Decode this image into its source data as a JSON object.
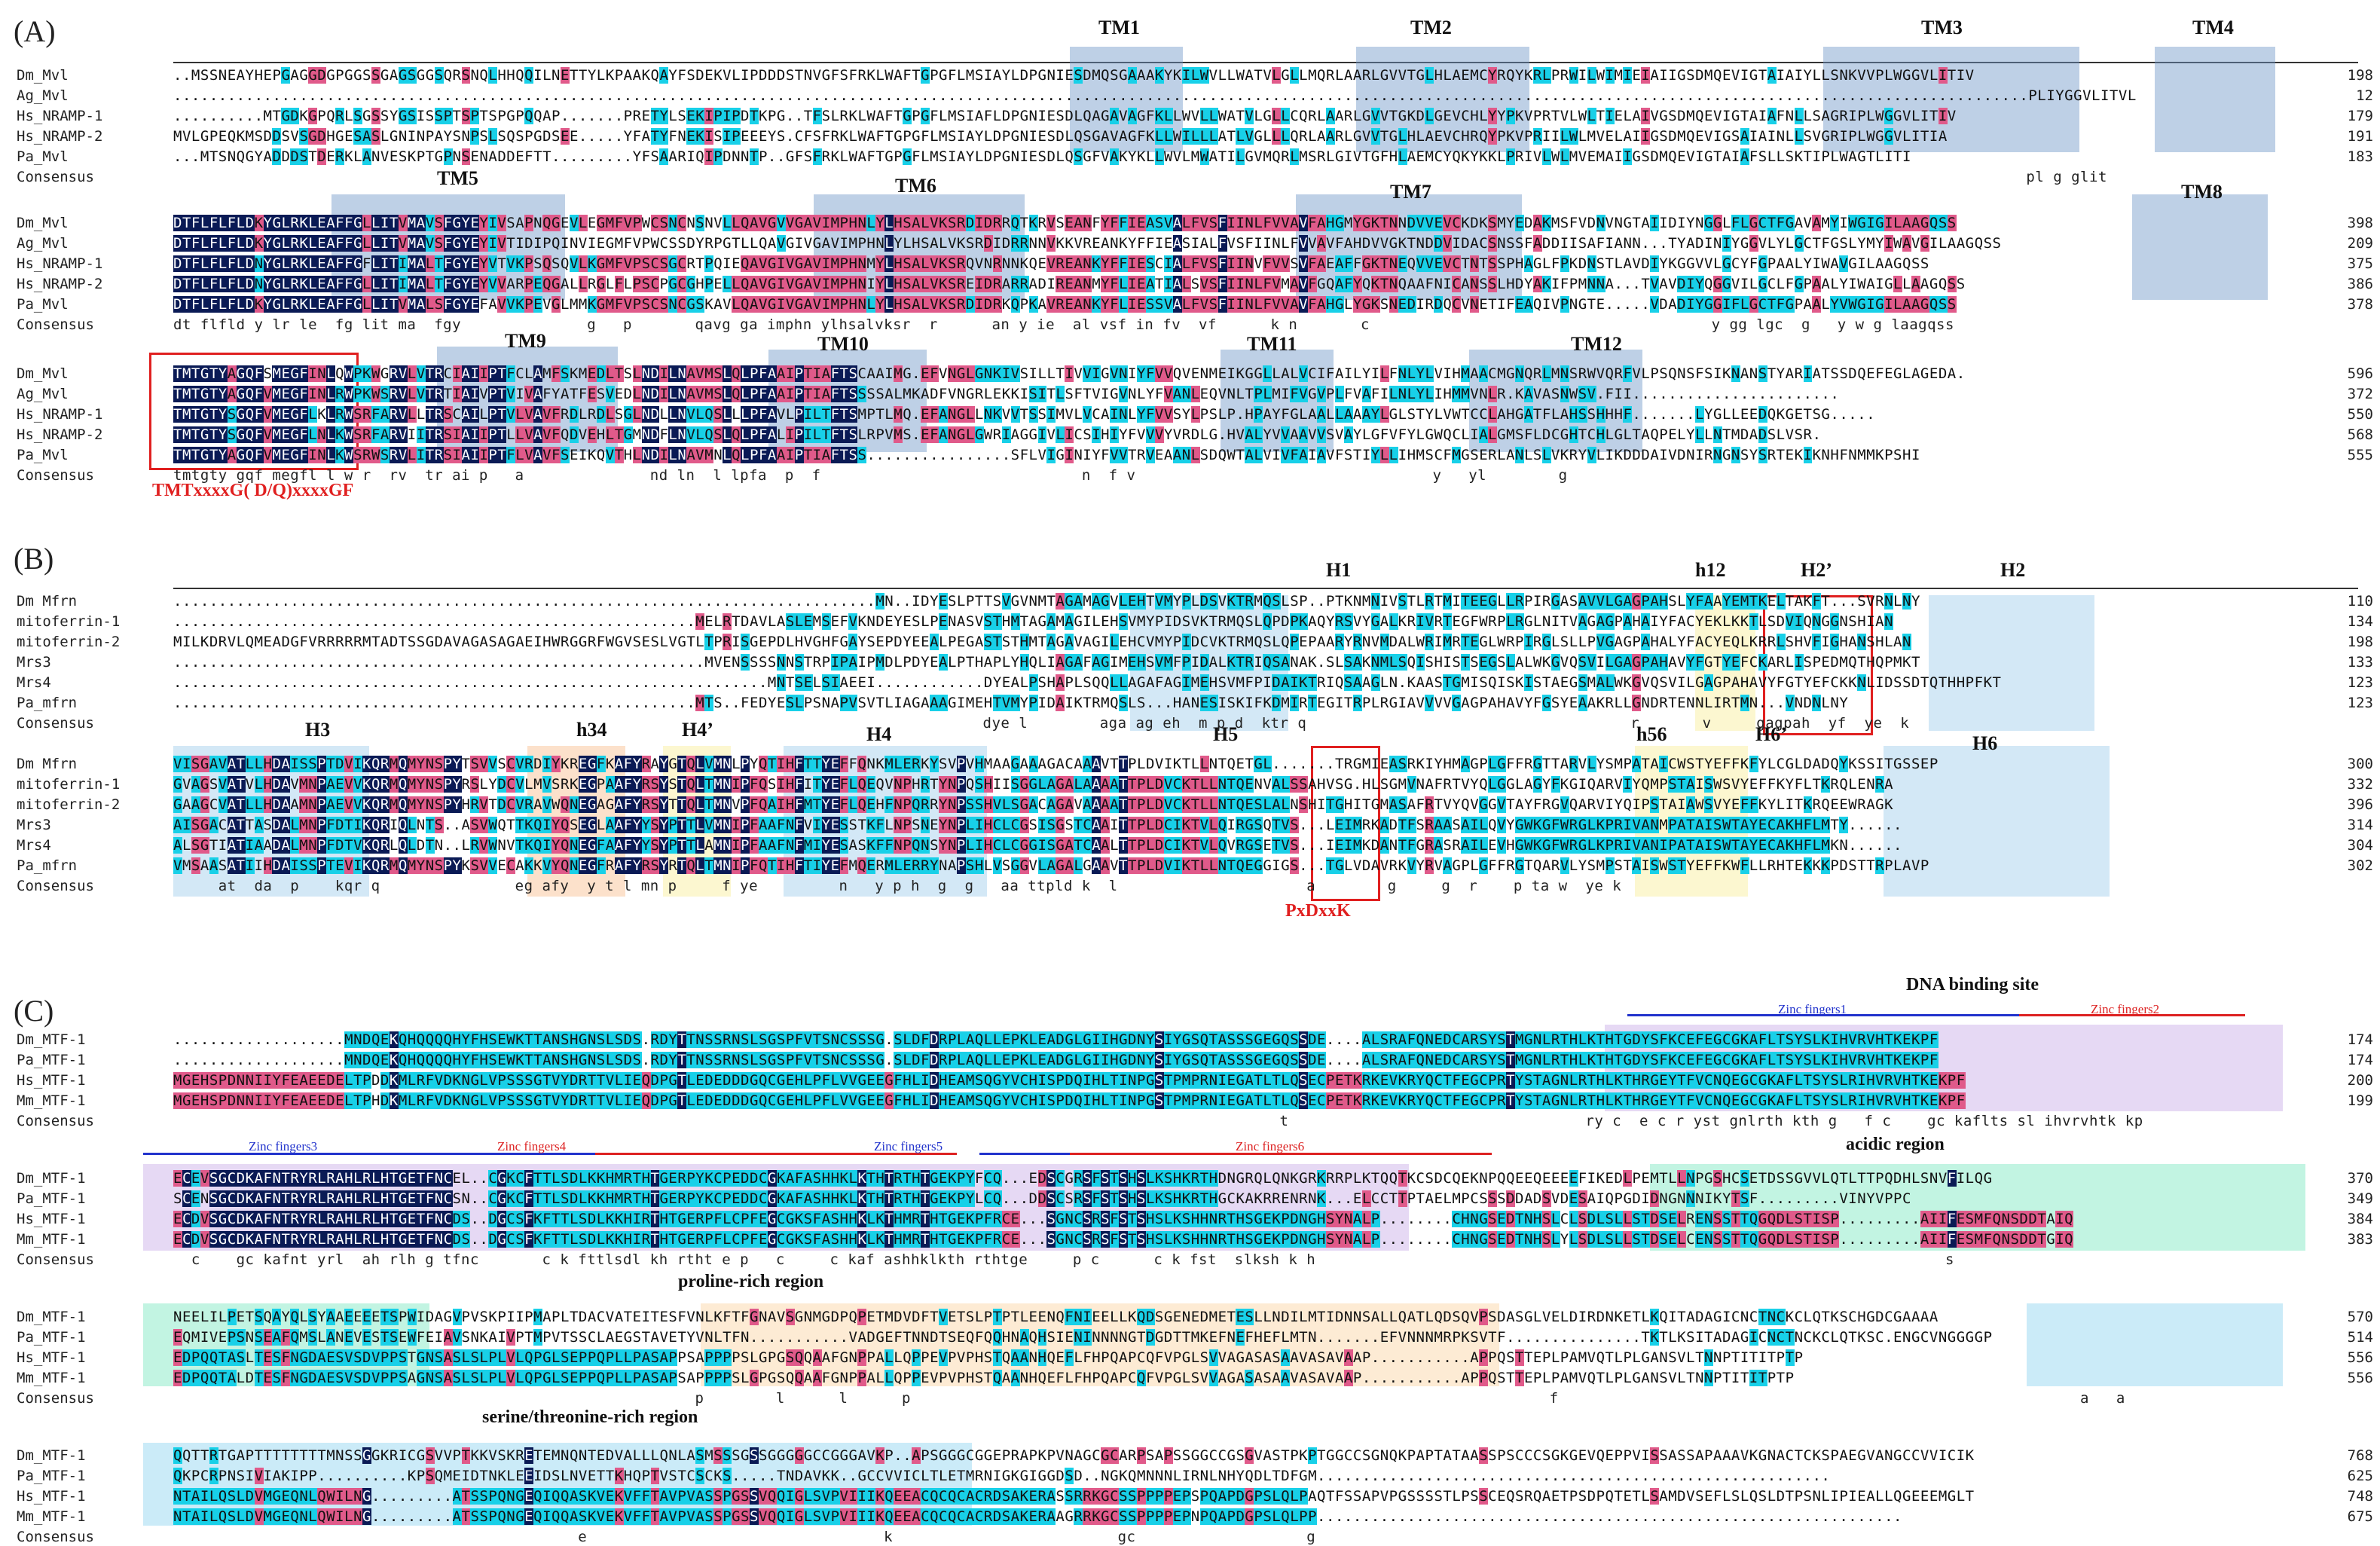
{
  "panels": {
    "A": {
      "label": "(A)",
      "rows": [
        {
          "name": "Dm_Mvl",
          "seq": "..MSSNEAYHEPGAGGDGPGGSSGAGSGGSQRSNQLHHQQILNETTYLKPAAKQAYFSDEKVLIPDDDSTNVGFSFRKLWAFTGPGFLMSIAYLDPGNIESDMQSGAAAKYKILWVLLWATVLGLLMQRLAARLGVVTGLHLAEMCYRQYKRLPRWILWIMIEIAIIGSDMQEVIGTAIAIYLLSNKVVPLWGGVLITIV",
          "num": "198"
        },
        {
          "name": "Ag_Mvl",
          "seq": "..............................................................................................................................................................................................................PLIYGGVLITVL",
          "num": "12"
        },
        {
          "name": "Hs_NRAMP-1",
          "seq": "..........MTGDKGPQRLSGSSYGSISSPTSPTSPGPQQAP.......PRETYLSEKIPIPDTKPG..TFSLRKLWAFTGPGFLMSIAFLDPGNIESDLQAGAVAGFKLLWVLLWATVLGLLCQRLAARLGVVTGKDLGEVCHLYYPKVPRTVLWLTIELAIVGSDMQEVIGTAIAFNLLSAGRIPLWGGVLITIV",
          "num": "179"
        },
        {
          "name": "Hs_NRAMP-2",
          "seq": "MVLGPEQKMSDDSVSGDHGESASLGNINPAYSNPSLSQSPGDSEE.....YFATYFNEKISIPEEEYS.CFSFRKLWAFTGPGFLMSIAYLDPGNIESDLQSGAVAGFKLLWILLLATLVGLLLQRLAARLGVVTGLHLAEVCHRQYPKVPRIILWLMVELAIIGSDMQEVIGSAIAINLLSVGRIPLWGGVLITIA",
          "num": "191"
        },
        {
          "name": "Pa_Mvl",
          "seq": "...MTSNQGYADDDSTDERKLANVESKPTGPNSENADDEFTT.........YFSAARIQIPDNNTP..GFSFRKLWAFTGPGFLMSIAYLDPGNIESDLQSGFVAKYKLLWVLMWATILGVMQRLMSRLGIVTGFHLAEMCYQKYKKLPRIVLWLMVEMAIIGSDMQEVIGTAIAFSLLSKTIPLWAGTLITI",
          "num": "183"
        },
        {
          "name": "Consensus",
          "seq": "                                                                                                                                                                                                              pl g glit",
          "num": ""
        },
        {
          "name": "Dm_Mvl",
          "seq": "DTFLFLFLDKYGLRKLEAFFGLLITVMAVSFGYEYIVSAPNQGEVLEGMFVPWCSNCNSNVLLQAVGVVGAVIMPHNLYLHSALVKSRDIDRRQTKRVSEANFYFFIEASVALFVSFIINLFVVAVFAHGMYGKTNNDVVEVCKDKSMYEDAKMSFVDNVNGTAIIDIYNGGLFLGCTFGAVAMYIWGIGILAAGQSS",
          "num": "398"
        },
        {
          "name": "Ag_Mvl",
          "seq": "DTFLFLFLDKYGLRKLEAFFGLLITVMAVSFGYEYIVTIDIPQINVIEGMFVPWCSSDYRPGTLLQAVGIVGAVIMPHNLYLHSALVKSRDIDRRNNVKKVREANKYFFIEASIALFVSFIINLFVVAVFAHDVVGKTNDDVIDACSNSSFADDIISAFIANN...TYADINIYGGVLYLGCTFGSLYMYIWAVGILAAGQSS",
          "num": "209"
        },
        {
          "name": "Hs_NRAMP-1",
          "seq": "DTFLFLFLDNYGLRKLEAFFGFLITIMALTFGYEYVTVKPSQSQVLKGMFVPSCSGCRTPQIEQAVGIVGAVIMPHNMYLHSALVKSRQVNRNNKQEVREANKYFFIESCIALFVSFIINVFVVSVFAEAFFGKTNEQVVEVCTNTSSPHAGLFPKDNSTLAVDIYKGGVVLGCYFGPAALYIWAVGILAAGQSS",
          "num": "375"
        },
        {
          "name": "Hs_NRAMP-2",
          "seq": "DTFLFLFLDNYGLRKLEAFFGLLITIMALTFGYEYVVARPEQGALLRGLFLPSCPGCGHPELLQAVGIVGAVIMPHNIYLHSALVKSREIDRARRADIREANMYFLIEATIALSVSFIINLFVMAVFGQAFYQKTNQAAFNICANSSLHDYAKIFPMNNA...TVAVDIYQGGVILGCLFGPAALYIWAIGLLAAGQSS",
          "num": "386"
        },
        {
          "name": "Pa_Mvl",
          "seq": "DTFLFLFLDKYGLRKLEAFFGLLITVMALSFGYEFAVVKPEVGLMMKGMFVPSCSNCGSKAVLQAVGIVGAVIMPHNLYLHSALVKSRDIDRKQPKAVREANKYFLIESSVALFVSFIINLFVVAVFAHGLYGKSNEDIRDQCVNETIFEAQIVPNGTE.....VDADIYGGIFLGCTFGPAALYVWGIGILAAGQSS",
          "num": "378"
        },
        {
          "name": "Consensus",
          "seq": "dt flfld y lr le  fg lit ma  fgy              g   p       qavg ga imphn ylhsalvksr  r      an y ie  al vsf in fv  vf      k n       c                                      y gg lgc  g   y w g laagqss",
          "num": ""
        },
        {
          "name": "Dm_Mvl",
          "seq": "TMTGTYAGQFSMEGFINLQWPKWGRVLVTRCIAIIPTFCLAMFSKMEDLTSLNDILNAVMSLQLPFAAIPTIAFTSCAAIMG.EFVNGLGNKIVSILLTIVVIGVNIYFVVQVENMEIKGGLLALVCIFAILYILFNLYLVIHMAACMGNQRLMNSRWVQRFVLPSQNSFSIKNANSTYARIATSSDQEFEGLAGEDA.",
          "num": "596"
        },
        {
          "name": "Ag_Mvl",
          "seq": "TMTGTYAGQFVMEGFINLRWPKWSRVLVTRTIAIVPTVIVAFYATFESVEDLNDILNAVMSLQLPFAAIPTIAFTSSSSALMKADFVNGRLEKKISITLSFTVIGVNLYFVANLEQVNLTPLMIFVGVPLFVAFILNLYLIHMMVNLR.KAVASNWSV.FII.......................",
          "num": "372"
        },
        {
          "name": "Hs_NRAMP-1",
          "seq": "TMTGTYSGQFVMEGFLKLRWSRFARVLLTRSCAILPTVLVAVFRDLRDLSGLNDLLNVLQSLLLPFAVLPILTFTSMPTLMQ.EFANGLLNKVVTSSIMVLVCAINLYFVVSYLPSLP.HPAYFGLAALLAAAYLGLSTYLVWTCCLAHGATFLAHSSHHHF.......LYGLLEEDQKGETSG.....",
          "num": "550"
        },
        {
          "name": "Hs_NRAMP-2",
          "seq": "TMTGTYSGQFVMEGFLNLKWSRFARVIITRSIAIIPTLLVAVFQDVEHLTGMNDFLNVLQSLQLPFALIPILTFTSLRPVMS.EFANGLGWRIAGGIVLICSIHIYFVVVYVRDLG.HVALYVVAAVVSVAYLGFVFYLGWQCLIALGMSFLDCGHTCHLGLTAQPELYLLNTMDADSLVSR.",
          "num": "568"
        },
        {
          "name": "Pa_Mvl",
          "seq": "TMTGTYAGQFVMEGFINLKWSRWSRVLITRSIAIIPTFLVAVFSEIKQVTHLNDILNAVMNLQLPFAAIPTIAFTSS................SFLVIGINIYFVVTRVEAANLSDQWTALVIVFAIAVFSTIYLLIHMSCFMGSERLANLSLVKRYVLIKDDDAIVDNIRNGNSYSRTEKIKNHFNMMKPSHI",
          "num": "555"
        },
        {
          "name": "Consensus",
          "seq": "tmtgty gqf megfl l w r  rv  tr ai p   a              nd ln  l lpfa  p  f                             n  f v                                 y   yl        g",
          "num": ""
        }
      ],
      "features": [
        "TM1",
        "TM2",
        "TM3",
        "TM4",
        "TM5",
        "TM6",
        "TM7",
        "TM8",
        "TM9",
        "TM10",
        "TM11",
        "TM12"
      ],
      "motif": "TMTxxxxG( D/Q)xxxxGF"
    },
    "B": {
      "label": "(B)",
      "rows": [
        {
          "name": "Dm Mfrn",
          "seq": "..............................................................................MN..IDYESLPTTSVGVNMTAGAMAGVLEHTVMYPLDSVKTRMQSLSP..PTKNMNIVSTLRTMITEEGLLRPIRGASAVVLGAGPAHSLYFAAYEMTKELTAKFT...SVRNLNY",
          "num": "110"
        },
        {
          "name": "mitoferrin-1",
          "seq": "..........................................................MELRTDAVLASLEMSEFVKNDEYESLPENASVSTHMTAGAMAGILEHSVMYPIDSVKTRMQSLQPDPKAQYRSVYGALKRIVRTEGFWRPLRGLNITVAGAGPAHAIYFACYEKLKKTLSDVIQNGGNSHIAN",
          "num": "134"
        },
        {
          "name": "mitoferrin-2",
          "seq": "MILKDRVLQMEADGFVRRRRRMTADTSSGDAVAGASAGAEIHWRGGRFWGVSESLVGTLTPRISGEPDLHVGHFGAYSEPDYEEALPEGASTSTHMTAGAVAGILEHCVMYPIDCVKTRMQSLQPEPAARYRNVMDALWRIMRTEGLWRPIRGLSLLPVGAGPAHALYFACYEQLKRRLSHVFIGHANSHLAN",
          "num": "198"
        },
        {
          "name": "Mrs3",
          "seq": "...........................................................MVENSSSSNNSTRPIPAIPMDLPDYEALPTHAPLYHQLIAGAFAGIMEHSVMFPIDALKTRIQSANAK.SLSAKNMLSQISHISTSEGSLALWKGVQSVILGAGPAHAVYFGTYEFCKARLISPEDMQTHQPMKT",
          "num": "133"
        },
        {
          "name": "Mrs4",
          "seq": "..................................................................MNTSELSIAEEI............DYEALPSHAPLSQQLLAGAFAGIMEHSVMFPIDAIKTRIQSAAGLN.KAASTGMISQISKISTAEGSMALWKGVQSVILGAGPAHAVYFGTYEFCKKNLIDSSDTQTHHPFKT",
          "num": "123"
        },
        {
          "name": "Pa_mfrn",
          "seq": "..........................................................MTS..FEDYESLPSNAPVSVTLIAGAAAGIMEHTVMYPIDAIKTRMQSLS...HANESISKIFKDMIRTEGITRPLRGIAVVVVGAGPAHAVYFGSYEAAKRLLGNDRTENNLIRTMN...VNDNLNY",
          "num": "123"
        },
        {
          "name": "Consensus",
          "seq": "                                                                                          dye l        aga ag eh  m p d  ktr q                                    r       v     gagpah  yf  ye  k",
          "num": ""
        },
        {
          "name": "Dm Mfrn",
          "seq": "VISGAVATLLHDAISSPTDVIKQRMQMYNSPYTSVVSCVRDIYKREGFKAFYRAYGTQLVMNLPYQTIHFTTYEFFQNKMLERKYSVPVHMAAGAAAGACAAAVTTPLDVIKTLLNTQETGL.......TRGMIEASRKIYHMAGPLGFFRGTTARVLYSMPATAICWSTYEFFKFYLCGLDADQYKSSITGSSEP",
          "num": "300"
        },
        {
          "name": "mitoferrin-1",
          "seq": "GVAGSVATVLHDAVMNPAEVVKQRMQMYNSPYRSLYDCVLMVSRKEGPAAFYRSYSTQLTMNIPFQSIHFITYEFLQEQVNPHRTYNPQSHIISGGLAGALAAAATTPLDVCKTLLNTQENVALSSAHVSG.HLSGMVNAFRTVYQLGGLAGYFKGIQARVIYQMPSTAISWSVYEFFKYFLTKRQLENRA",
          "num": "332"
        },
        {
          "name": "mitoferrin-2",
          "seq": "GAAGCVATLLHDAAMNPAEVVKQRMQMYNSPYHRVTDCVRAVWQNEGAGAFYRSYTTQLTMNVPFQAIHFMTYEFLQEHFNPQRRYNPSSHVLSGACAGAVAAAATTPLDVCKTLLNTQESLALNSHITGHITGMASAFRTVYQVGGVTAYFRGVQARVIYQIPSTAIAWSVYEFFKYLITKRQEEWRAGK",
          "num": "396"
        },
        {
          "name": "Mrs3",
          "seq": "AISGACATTASDALMNPFDTIKQRIQLNTS..ASVWQTTKQIYQSEGLAAFYYSYPTTLVMNIPFAAFNFVIYESSTKFLNPSNEYNPLIHCLCGSISGSTCAAITTPLDCIKTVLQIRGSQTVS...LEIMRKADTFSRAASAILQVYGWKGFWRGLKPRIVANMPATAISWTAYECAKHFLMTY......",
          "num": "314"
        },
        {
          "name": "Mrs4",
          "seq": "ALSGTIATIAADALMNPFDTVKQRLQLDTN..LRVWNVTKQIYQNEGFAAFYYSYPTTLAMNIPFAAFNFMIYESASKFFNPQNSYNPLIHCLCGGISGATCAALTTPLDCIKTVLQVRGSETVS...IEIMKDANTFGRASRAILEVHGWKGFWRGLKPRIVANIPATAISWTAYECAKHFLMKN......",
          "num": "304"
        },
        {
          "name": "Pa_mfrn",
          "seq": "VMSAASATIIHDAISSPTEVIKQRMQMYNSPYKSVVECAKKVYQNEGFRAFYRSYRTQLTMNIPFQTIHFTIYEFMQERMLERRYNAPSHLVSGGVLAGALGAAVTTPLDVIKTLLNTQEGGIGS...TGLVDAVRKVYRVAGPLGFFRGTQARVLYSMPSTAISWSTYEFFKWFLLRHTEKKKPDSTTRPLAVP",
          "num": "302"
        },
        {
          "name": "Consensus",
          "seq": "     at  da  p    kqr q               eg afy  y t l mn p     f ye         n   y p h  g  g   aa ttpld k  l                     a        g     g  r    p ta w  ye k",
          "num": ""
        }
      ],
      "features": [
        "H1",
        "h12",
        "H2’",
        "H2",
        "H3",
        "h34",
        "H4’",
        "H4",
        "H5",
        "h56",
        "H6’",
        "H6"
      ],
      "motif": "PxDxxK"
    },
    "C": {
      "label": "(C)",
      "rows": [
        {
          "name": "Dm_MTF-1",
          "seq": "...................MNDQEKQHQQQQHYFHSEWKTTANSHGNSLSDS.RDYTTNSSRNSLSGSPFVTSNCSSSG.SLDFDRPLAQLLEPKLEADGLGIIHGDNYSIYGSQTASSSGEGQSSDE....ALSRAFQNEDCARSYSTMGNLRTHLKTHTGDYSFKCEFEGCGKAFLTSYSLKIHVRVHTKEKPF",
          "num": "174"
        },
        {
          "name": "Pa_MTF-1",
          "seq": "...................MNDQEKQHQQQQHYFHSEWKTTANSHGNSLSDS.RDYTTNSSRNSLSGSPFVTSNCSSSG.SLDFDRPLAQLLEPKLEADGLGIIHGDNYSIYGSQTASSSGEGQSSDE....ALSRAFQNEDCARSYSTMGNLRTHLKTHTGDYSFKCEFEGCGKAFLTSYSLKIHVRVHTKEKPF",
          "num": "174"
        },
        {
          "name": "Hs_MTF-1",
          "seq": "MGEHSPDNNIIYFEAEEDELTPDDKMLRFVDKNGLVPSSSGTVYDRTTVLIEQDPGTLEDEDDDGQCGEHLPFLVVGEEGFHLIDHEAMSQGYVCHISPDQIHLTINPGSTPMPRNIEGATLTLQSECPETKRKEVKRYQCTFEGCPRTYSTAGNLRTHLKTHRGEYTFVCNQEGCGKAFLTSYSLRIHVRVHTKEKPF",
          "num": "200"
        },
        {
          "name": "Mm_MTF-1",
          "seq": "MGEHSPDNNIIYFEAEEDELTPHDKMLRFVDKNGLVPSSSGTVYDRTTVLIEQDPGTLEDEDDDGQCGEHLPFLVVGEEGFHLIDHEAMSQGYVCHISPDQIHLTINPGSTPMPRNIEGATLTLQSECPETKRKEVKRYQCTFEGCPRTYSTAGNLRTHLKTHRGEYTFVCNQEGCGKAFLTSYSLRIHVRVHTKEKPF",
          "num": "199"
        },
        {
          "name": "Consensus",
          "seq": "                                                                                                                           t                                 ry c  e c r yst gnlrth kth g   f c    gc kaflts sl ihvrvhtk kp",
          "num": ""
        },
        {
          "name": "Dm_MTF-1",
          "seq": "ECEVSGCDKAFNTRYRLRAHLRLHTGETFNCEL..CGKCFTTLSDLKKHMRTHTGERPYKCPEDDCGKAFASHHKLKTHTRTHTGEKPYFCQ...EDSCGRSFSTSHSLKSHKRTHDNGRQLQNKGRKRRPLKTQQTKCSDCQEKNPQQEEQEEEEFIKEDLPEMTLLNPGSHCSETDSSGVVLQTLTTPQDHLSNVFILQG",
          "num": "370"
        },
        {
          "name": "Pa_MTF-1",
          "seq": "SCENSGCDKAFNTRYRLRAHLRLHTGETFNCSN..CGKCFTTLSDLKKHMRTHTGERPYKCPEDDCGKAFASHHKLKTHTRTHTGEKPYLCQ...DDSCSRSFSTSHSLKSHKRTHGCKAKRRENRNK...ELCCTTPTAELMPCSSSDDADSVDESAIQPGDIDNGNNNIKYTSF.........VINYVPPC",
          "num": "349"
        },
        {
          "name": "Hs_MTF-1",
          "seq": "ECDVSGCDKAFNTRYRLRAHLRLHTGETFNCDS..DGCSFKFTTLSDLKKHIRTHTGERPFLCPFEGCGKSFASHHKLKTHMRTHTGEKPFRCE...SGNCSRSFSTSHSLKSHHNRTHSGEKPDNGHSYNALP........CHNGSEDTNHSLCLSDLSLLSTDSELRENSSTTQGQDLSTISP.........AIIFESMFQNSDDTAIQ",
          "num": "384"
        },
        {
          "name": "Mm_MTF-1",
          "seq": "ECDVSGCDKAFNTRYRLRAHLRLHTGETFNCDS..DGCSFKFTTLSDLKKHIRTHTGERPFLCPFEGCGKSFASHHKLKTHMRTHTGEKPFRCE...SGNCSRSFSTSHSLKSHHNRTHSGEKPDNGHSYNALP........CHNGSEDTNHSLYLSDLSLLSTDSELCENSSTTQGQDLSTISP.........AIIFESMFQNSDDTGIQ",
          "num": "383"
        },
        {
          "name": "Consensus",
          "seq": "  c    gc kafnt yrl  ah rlh g tfnc       c k fttlsdl kh rtht e p   c     c kaf ashhklkth rthtge     p c      c k fst  slksh k h                                                                      s",
          "num": ""
        },
        {
          "name": "Dm_MTF-1",
          "seq": "NEELILPETSQAYQLSYAAEEEETSPWIDAGVPVSKPIIPMAPLTDACVATEITESFVNLKFTFGNAVSGNMGDPQPETMDVDFTVETSLPTPTLEENQFNIEELLKQDSGENEDMETESLLNDILMTIDNNSALLQATLQDSQVPSDASGLVELDIRDNKETLKQITADAGICNCTNCKCLQTKSCHGDCGAAAA",
          "num": "570"
        },
        {
          "name": "Pa_MTF-1",
          "seq": "EQMIVEPSNSEAFQMSLANEVESTSEWFEIAVSNKAIVPTMPVTSSCLAEGSTAVETYVNLTFN...........VADGEFTNNDTSEQFQQHNAQHSIENINNNNGTDGDTTMKEFNEFHEFLMTN.......EFVNNNMRPKSVTF...............TKTLKSITADAGICNCTNCKCLQTKSC.ENGCVNGGGGP",
          "num": "514"
        },
        {
          "name": "Hs_MTF-1",
          "seq": "EDPQQTASLTESFNGDAESVSDVPPSTGNSASLSLPLVLQPGLSEPPQPLLPASAPPSAPPPPSLGPGSQQAAFGNPPALLQPPEVPVPHSTQAANHQEFLFHPQAPCQFVPGLSVVAGASASAAVASAVAAP...........APPQSTTEPLPAMVQTLPLGANSVLTNNPTITITPTP",
          "num": "556"
        },
        {
          "name": "Mm_MTF-1",
          "seq": "EDPQQTALDTESFNGDAESVSDVPPSAGNSASLSLPLVLQPGLSEPPQPLLPASAPSAPPPPSLGPGSQQAAFGNPPALLQPPEVPVPHSTQAANHQEFLFHPQAPCQFVPGLSVVAGASASAAVASAVAAP...........APPQSTTEPLPAMVQTLPLGANSVLTNNPTITITPTP",
          "num": "556"
        },
        {
          "name": "Consensus",
          "seq": "                                                          p        l      l      p                                                                       f                                                          a   a",
          "num": ""
        },
        {
          "name": "Dm_MTF-1",
          "seq": "QQTTRTGAPTTTTTTTTMNSSGGKRICGSVVPTKKVSKRETEMNQNTEDVALLLQNLASMSSSGSSGGGGGCCGGGAVKP..APSGGGCGGEPRAPKPVNAGCGCARPSAPSSGGCCGSGVASTPKPTGGCCSGNQKPAPTATAASSPSCCCSGKGEVQEPPVISSASSAPAAAVKGNACTCKSPAEGVANGCCVVICIK",
          "num": "768"
        },
        {
          "name": "Pa_MTF-1",
          "seq": "QKPCRPNSIVIAKIPP..........KPSQMEIDTNKLEEIDSLNVETTKHQPTVSTCSCKS.....TNDAVKK..GCCVVICLTLETMRNIGKGIGGDSD..NGKQMNNNLIRNLNHYQDLTDFGM.........................................................",
          "num": "625"
        },
        {
          "name": "Hs_MTF-1",
          "seq": "NTAILQSLDVMGEQNLQWILNG.........ATSSPQNGEQIQQASKVEKVFFTAVPVASSPGSSVQQIGLSVPVIIIKQEEACQCQCACRDSAKERASSRRKGCSSPPPPEPSPQAPDGPSLQLPAQTFSSAPVPGSSSSTLPSSCEQSRQAETPSDPQTETLSAMDVSEFLSLQSLDTPSNLIPIEALLQGEEEMGLT",
          "num": "748"
        },
        {
          "name": "Mm_MTF-1",
          "seq": "NTAILQSLDVMGEQNLQWILNG.........ATSSPQNGEQIQQASKVEKVFFTAVPVASSPGSSVQQIGLSVPVIIIKQEEACQCQCACRDSAKERAAGRRKGCSSPPPPEPNPQAPDGPSLQLPP.................................................................",
          "num": "675"
        },
        {
          "name": "Consensus",
          "seq": "                                             e                                 k                         gc                   g",
          "num": ""
        }
      ],
      "zinc": [
        "Zinc fingers1",
        "Zinc fingers2",
        "Zinc fingers3",
        "Zinc fingers4",
        "Zinc fingers5",
        "Zinc fingers6"
      ],
      "regions": {
        "dna": "DNA binding site",
        "acidic": "acidic region",
        "proline": "proline-rich region",
        "serine": "serine/threonine-rich region"
      }
    }
  },
  "colors": {
    "navy": "#0a1a55",
    "cyan": "#18d0e8",
    "pink": "#e05a8a",
    "tmbox": "#6e96c8",
    "red": "#e02020",
    "zinc_blue": "#2233cc",
    "zinc_red": "#dd2222"
  }
}
